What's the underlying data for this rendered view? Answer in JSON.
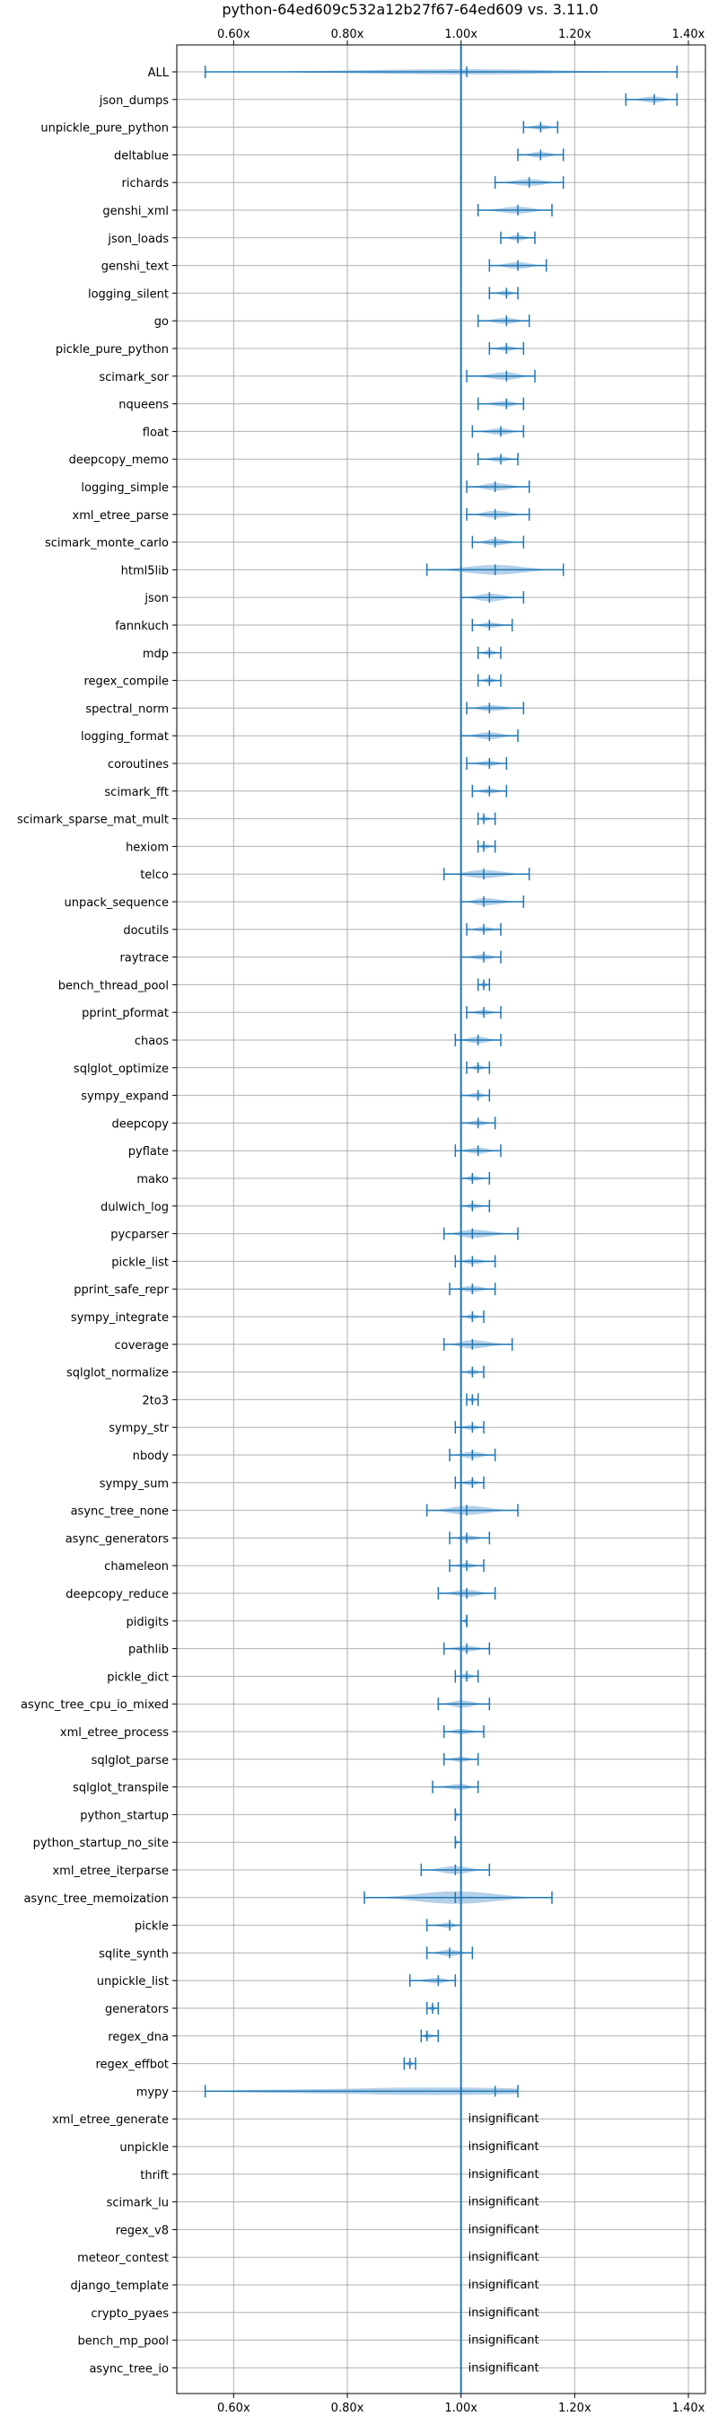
{
  "chart_data": {
    "type": "violin",
    "title": "python-64ed609c532a12b27f67-64ed609 vs. 3.11.0",
    "xlabel": "",
    "ylabel": "",
    "xlim": [
      0.5,
      1.43
    ],
    "xticks": [
      {
        "value": 0.6,
        "label": "0.60x"
      },
      {
        "value": 0.8,
        "label": "0.80x"
      },
      {
        "value": 1.0,
        "label": "1.00x"
      },
      {
        "value": 1.2,
        "label": "1.20x"
      },
      {
        "value": 1.4,
        "label": "1.40x"
      }
    ],
    "reference_line": 1.0,
    "grid": true,
    "colors": {
      "line": "#1f77b4",
      "fill": "#a7c8e4",
      "grid": "#b0b0b0",
      "text": "#000000"
    },
    "insignificant_label": "insignificant",
    "benchmarks": [
      {
        "name": "ALL",
        "median": 1.01,
        "min": 0.55,
        "max": 1.38,
        "width": 0.018
      },
      {
        "name": "json_dumps",
        "median": 1.34,
        "min": 1.29,
        "max": 1.38,
        "width": 0.022
      },
      {
        "name": "unpickle_pure_python",
        "median": 1.14,
        "min": 1.11,
        "max": 1.17,
        "width": 0.018
      },
      {
        "name": "deltablue",
        "median": 1.14,
        "min": 1.1,
        "max": 1.18,
        "width": 0.022
      },
      {
        "name": "richards",
        "median": 1.12,
        "min": 1.06,
        "max": 1.18,
        "width": 0.025
      },
      {
        "name": "genshi_xml",
        "median": 1.1,
        "min": 1.03,
        "max": 1.16,
        "width": 0.025
      },
      {
        "name": "json_loads",
        "median": 1.1,
        "min": 1.07,
        "max": 1.13,
        "width": 0.02
      },
      {
        "name": "genshi_text",
        "median": 1.1,
        "min": 1.05,
        "max": 1.15,
        "width": 0.024
      },
      {
        "name": "logging_silent",
        "median": 1.08,
        "min": 1.05,
        "max": 1.1,
        "width": 0.017
      },
      {
        "name": "go",
        "median": 1.08,
        "min": 1.03,
        "max": 1.12,
        "width": 0.022
      },
      {
        "name": "pickle_pure_python",
        "median": 1.08,
        "min": 1.05,
        "max": 1.11,
        "width": 0.019
      },
      {
        "name": "scimark_sor",
        "median": 1.08,
        "min": 1.01,
        "max": 1.13,
        "width": 0.028
      },
      {
        "name": "nqueens",
        "median": 1.08,
        "min": 1.03,
        "max": 1.11,
        "width": 0.022
      },
      {
        "name": "float",
        "median": 1.07,
        "min": 1.02,
        "max": 1.11,
        "width": 0.024
      },
      {
        "name": "deepcopy_memo",
        "median": 1.07,
        "min": 1.03,
        "max": 1.1,
        "width": 0.02
      },
      {
        "name": "logging_simple",
        "median": 1.06,
        "min": 1.01,
        "max": 1.12,
        "width": 0.026
      },
      {
        "name": "xml_etree_parse",
        "median": 1.06,
        "min": 1.01,
        "max": 1.12,
        "width": 0.026
      },
      {
        "name": "scimark_monte_carlo",
        "median": 1.06,
        "min": 1.02,
        "max": 1.11,
        "width": 0.024
      },
      {
        "name": "html5lib",
        "median": 1.06,
        "min": 0.94,
        "max": 1.18,
        "width": 0.035
      },
      {
        "name": "json",
        "median": 1.05,
        "min": 1.0,
        "max": 1.11,
        "width": 0.028
      },
      {
        "name": "fannkuch",
        "median": 1.05,
        "min": 1.02,
        "max": 1.09,
        "width": 0.02
      },
      {
        "name": "mdp",
        "median": 1.05,
        "min": 1.03,
        "max": 1.07,
        "width": 0.014
      },
      {
        "name": "regex_compile",
        "median": 1.05,
        "min": 1.03,
        "max": 1.07,
        "width": 0.014
      },
      {
        "name": "spectral_norm",
        "median": 1.05,
        "min": 1.01,
        "max": 1.11,
        "width": 0.022
      },
      {
        "name": "logging_format",
        "median": 1.05,
        "min": 1.0,
        "max": 1.1,
        "width": 0.026
      },
      {
        "name": "coroutines",
        "median": 1.05,
        "min": 1.01,
        "max": 1.08,
        "width": 0.02
      },
      {
        "name": "scimark_fft",
        "median": 1.05,
        "min": 1.02,
        "max": 1.08,
        "width": 0.018
      },
      {
        "name": "scimark_sparse_mat_mult",
        "median": 1.04,
        "min": 1.03,
        "max": 1.06,
        "width": 0.012
      },
      {
        "name": "hexiom",
        "median": 1.04,
        "min": 1.03,
        "max": 1.06,
        "width": 0.013
      },
      {
        "name": "telco",
        "median": 1.04,
        "min": 0.97,
        "max": 1.12,
        "width": 0.03
      },
      {
        "name": "unpack_sequence",
        "median": 1.04,
        "min": 1.0,
        "max": 1.11,
        "width": 0.026
      },
      {
        "name": "docutils",
        "median": 1.04,
        "min": 1.01,
        "max": 1.07,
        "width": 0.018
      },
      {
        "name": "raytrace",
        "median": 1.04,
        "min": 1.0,
        "max": 1.07,
        "width": 0.02
      },
      {
        "name": "bench_thread_pool",
        "median": 1.04,
        "min": 1.03,
        "max": 1.05,
        "width": 0.01
      },
      {
        "name": "pprint_pformat",
        "median": 1.04,
        "min": 1.01,
        "max": 1.07,
        "width": 0.018
      },
      {
        "name": "chaos",
        "median": 1.03,
        "min": 0.99,
        "max": 1.07,
        "width": 0.024
      },
      {
        "name": "sqlglot_optimize",
        "median": 1.03,
        "min": 1.01,
        "max": 1.05,
        "width": 0.013
      },
      {
        "name": "sympy_expand",
        "median": 1.03,
        "min": 1.0,
        "max": 1.05,
        "width": 0.016
      },
      {
        "name": "deepcopy",
        "median": 1.03,
        "min": 1.0,
        "max": 1.06,
        "width": 0.02
      },
      {
        "name": "pyflate",
        "median": 1.03,
        "min": 0.99,
        "max": 1.07,
        "width": 0.022
      },
      {
        "name": "mako",
        "median": 1.02,
        "min": 1.0,
        "max": 1.05,
        "width": 0.018
      },
      {
        "name": "dulwich_log",
        "median": 1.02,
        "min": 1.0,
        "max": 1.05,
        "width": 0.017
      },
      {
        "name": "pycparser",
        "median": 1.02,
        "min": 0.97,
        "max": 1.1,
        "width": 0.03
      },
      {
        "name": "pickle_list",
        "median": 1.02,
        "min": 0.99,
        "max": 1.06,
        "width": 0.02
      },
      {
        "name": "pprint_safe_repr",
        "median": 1.02,
        "min": 0.98,
        "max": 1.06,
        "width": 0.022
      },
      {
        "name": "sympy_integrate",
        "median": 1.02,
        "min": 1.0,
        "max": 1.04,
        "width": 0.015
      },
      {
        "name": "coverage",
        "median": 1.02,
        "min": 0.97,
        "max": 1.09,
        "width": 0.03
      },
      {
        "name": "sqlglot_normalize",
        "median": 1.02,
        "min": 1.0,
        "max": 1.04,
        "width": 0.014
      },
      {
        "name": "2to3",
        "median": 1.02,
        "min": 1.01,
        "max": 1.03,
        "width": 0.01
      },
      {
        "name": "sympy_str",
        "median": 1.02,
        "min": 0.99,
        "max": 1.04,
        "width": 0.015
      },
      {
        "name": "nbody",
        "median": 1.02,
        "min": 0.98,
        "max": 1.06,
        "width": 0.024
      },
      {
        "name": "sympy_sum",
        "median": 1.02,
        "min": 0.99,
        "max": 1.04,
        "width": 0.016
      },
      {
        "name": "async_tree_none",
        "median": 1.01,
        "min": 0.94,
        "max": 1.1,
        "width": 0.032
      },
      {
        "name": "async_generators",
        "median": 1.01,
        "min": 0.98,
        "max": 1.05,
        "width": 0.02
      },
      {
        "name": "chameleon",
        "median": 1.01,
        "min": 0.98,
        "max": 1.04,
        "width": 0.018
      },
      {
        "name": "deepcopy_reduce",
        "median": 1.01,
        "min": 0.96,
        "max": 1.06,
        "width": 0.026
      },
      {
        "name": "pidigits",
        "median": 1.01,
        "min": 1.0,
        "max": 1.01,
        "width": 0.006
      },
      {
        "name": "pathlib",
        "median": 1.01,
        "min": 0.97,
        "max": 1.05,
        "width": 0.022
      },
      {
        "name": "pickle_dict",
        "median": 1.01,
        "min": 0.99,
        "max": 1.03,
        "width": 0.015
      },
      {
        "name": "async_tree_cpu_io_mixed",
        "median": 1.0,
        "min": 0.96,
        "max": 1.05,
        "width": 0.026
      },
      {
        "name": "xml_etree_process",
        "median": 1.0,
        "min": 0.97,
        "max": 1.04,
        "width": 0.02
      },
      {
        "name": "sqlglot_parse",
        "median": 1.0,
        "min": 0.97,
        "max": 1.03,
        "width": 0.018
      },
      {
        "name": "sqlglot_transpile",
        "median": 1.0,
        "min": 0.95,
        "max": 1.03,
        "width": 0.022
      },
      {
        "name": "python_startup",
        "median": 0.99,
        "min": 0.99,
        "max": 1.0,
        "width": 0.005
      },
      {
        "name": "python_startup_no_site",
        "median": 0.99,
        "min": 0.99,
        "max": 1.0,
        "width": 0.005
      },
      {
        "name": "xml_etree_iterparse",
        "median": 0.99,
        "min": 0.93,
        "max": 1.05,
        "width": 0.028
      },
      {
        "name": "async_tree_memoization",
        "median": 0.99,
        "min": 0.83,
        "max": 1.16,
        "width": 0.045
      },
      {
        "name": "pickle",
        "median": 0.98,
        "min": 0.94,
        "max": 1.0,
        "width": 0.018
      },
      {
        "name": "sqlite_synth",
        "median": 0.98,
        "min": 0.94,
        "max": 1.02,
        "width": 0.024
      },
      {
        "name": "unpickle_list",
        "median": 0.96,
        "min": 0.91,
        "max": 0.99,
        "width": 0.02
      },
      {
        "name": "generators",
        "median": 0.95,
        "min": 0.94,
        "max": 0.96,
        "width": 0.012
      },
      {
        "name": "regex_dna",
        "median": 0.94,
        "min": 0.93,
        "max": 0.96,
        "width": 0.012
      },
      {
        "name": "regex_effbot",
        "median": 0.91,
        "min": 0.9,
        "max": 0.92,
        "width": 0.008
      },
      {
        "name": "mypy",
        "median": 1.06,
        "min": 0.55,
        "max": 1.1,
        "width": 0.028,
        "shape": "mypy"
      },
      {
        "name": "xml_etree_generate",
        "insignificant": true
      },
      {
        "name": "unpickle",
        "insignificant": true
      },
      {
        "name": "thrift",
        "insignificant": true
      },
      {
        "name": "scimark_lu",
        "insignificant": true
      },
      {
        "name": "regex_v8",
        "insignificant": true
      },
      {
        "name": "meteor_contest",
        "insignificant": true
      },
      {
        "name": "django_template",
        "insignificant": true
      },
      {
        "name": "crypto_pyaes",
        "insignificant": true
      },
      {
        "name": "bench_mp_pool",
        "insignificant": true
      },
      {
        "name": "async_tree_io",
        "insignificant": true
      }
    ]
  }
}
